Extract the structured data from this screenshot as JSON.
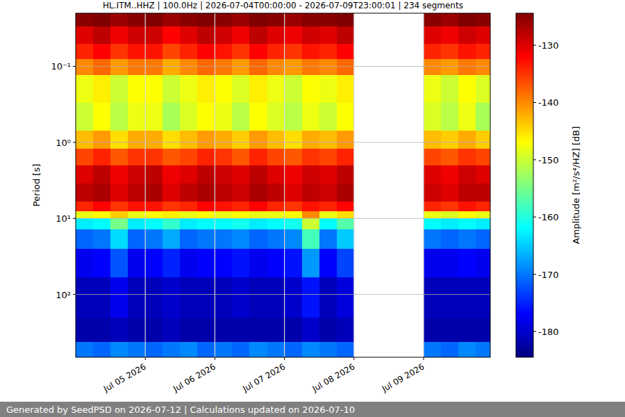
{
  "chart_data": {
    "type": "heatmap",
    "title": "HL.ITM..HHZ | 100.0Hz | 2026-07-04T00:00:00 - 2026-07-09T23:00:01 | 234 segments",
    "y_label": "Period [s]",
    "x_edges": [
      "2026-07-04T00:00",
      "2026-07-04T06:00",
      "2026-07-04T12:00",
      "2026-07-04T18:00",
      "2026-07-05T00:00",
      "2026-07-05T06:00",
      "2026-07-05T12:00",
      "2026-07-05T18:00",
      "2026-07-06T00:00",
      "2026-07-06T06:00",
      "2026-07-06T12:00",
      "2026-07-06T18:00",
      "2026-07-07T00:00",
      "2026-07-07T06:00",
      "2026-07-07T12:00",
      "2026-07-07T18:00",
      "2026-07-08T00:00",
      "2026-07-08T06:00",
      "2026-07-08T12:00",
      "2026-07-08T18:00",
      "2026-07-09T00:00",
      "2026-07-09T06:00",
      "2026-07-09T12:00",
      "2026-07-09T18:00",
      "2026-07-09T23:00"
    ],
    "y_edges": [
      0.02,
      0.03,
      0.05,
      0.08,
      0.13,
      0.3,
      0.7,
      1.2,
      2,
      3.5,
      6,
      8,
      10,
      14,
      25,
      60,
      200,
      420,
      670
    ],
    "z": [
      [
        -125,
        -124,
        -126,
        -125,
        -124,
        -126,
        -125,
        -124,
        -125,
        -126,
        -124,
        -125,
        -126,
        -125,
        -125,
        -124,
        null,
        null,
        null,
        null,
        -125,
        -126,
        -124,
        -125
      ],
      [
        -130,
        -128,
        -131,
        -129,
        -129,
        -132,
        -130,
        -128,
        -129,
        -131,
        -128,
        -130,
        -131,
        -129,
        -130,
        -128,
        null,
        null,
        null,
        null,
        -130,
        -131,
        -129,
        -130
      ],
      [
        -134,
        -132,
        -135,
        -133,
        -133,
        -136,
        -134,
        -132,
        -133,
        -135,
        -132,
        -134,
        -135,
        -133,
        -134,
        -132,
        null,
        null,
        null,
        null,
        -134,
        -135,
        -133,
        -134
      ],
      [
        -140,
        -138,
        -141,
        -139,
        -139,
        -142,
        -140,
        -138,
        -139,
        -141,
        -138,
        -140,
        -141,
        -139,
        -140,
        -138,
        null,
        null,
        null,
        null,
        -140,
        -141,
        -139,
        -140
      ],
      [
        -148,
        -146,
        -150,
        -147,
        -147,
        -150,
        -148,
        -146,
        -147,
        -149,
        -146,
        -148,
        -150,
        -147,
        -148,
        -146,
        null,
        null,
        null,
        null,
        -148,
        -150,
        -147,
        -149
      ],
      [
        -150,
        -147,
        -151,
        -148,
        -148,
        -152,
        -149,
        -147,
        -148,
        -151,
        -147,
        -149,
        -151,
        -148,
        -150,
        -147,
        null,
        null,
        null,
        null,
        -149,
        -151,
        -148,
        -152
      ],
      [
        -143,
        -141,
        -145,
        -142,
        -142,
        -145,
        -143,
        -141,
        -142,
        -144,
        -141,
        -143,
        -145,
        -142,
        -143,
        -141,
        null,
        null,
        null,
        null,
        -143,
        -144,
        -142,
        -144
      ],
      [
        -136,
        -134,
        -137,
        -135,
        -135,
        -137,
        -136,
        -134,
        -135,
        -137,
        -134,
        -136,
        -137,
        -135,
        -136,
        -134,
        null,
        null,
        null,
        null,
        -136,
        -137,
        -135,
        -136
      ],
      [
        -130,
        -128,
        -131,
        -129,
        -128,
        -131,
        -130,
        -128,
        -129,
        -130,
        -128,
        -130,
        -131,
        -129,
        -130,
        -128,
        null,
        null,
        null,
        null,
        -130,
        -131,
        -129,
        -130
      ],
      [
        -128,
        -127,
        -130,
        -128,
        -127,
        -130,
        -128,
        -127,
        -128,
        -129,
        -127,
        -128,
        -130,
        -128,
        -129,
        -127,
        null,
        null,
        null,
        null,
        -129,
        -130,
        -128,
        -128
      ],
      [
        -134,
        -132,
        -135,
        -133,
        -133,
        -135,
        -134,
        -132,
        -133,
        -134,
        -132,
        -134,
        -135,
        -133,
        -134,
        -132,
        null,
        null,
        null,
        null,
        -134,
        -135,
        -133,
        -134
      ],
      [
        -148,
        -147,
        -144,
        -148,
        -147,
        -146,
        -148,
        -147,
        -148,
        -147,
        -148,
        -148,
        -147,
        -140,
        -148,
        -145,
        null,
        null,
        null,
        null,
        -148,
        -149,
        -147,
        -148
      ],
      [
        -163,
        -162,
        -155,
        -163,
        -162,
        -159,
        -163,
        -162,
        -162,
        -161,
        -163,
        -162,
        -161,
        -150,
        -162,
        -157,
        null,
        null,
        null,
        null,
        -162,
        -163,
        -162,
        -163
      ],
      [
        -171,
        -170,
        -164,
        -171,
        -170,
        -167,
        -171,
        -170,
        -170,
        -169,
        -171,
        -170,
        -169,
        -158,
        -170,
        -165,
        null,
        null,
        null,
        null,
        -170,
        -171,
        -170,
        -171
      ],
      [
        -178,
        -177,
        -172,
        -178,
        -177,
        -175,
        -178,
        -177,
        -177,
        -176,
        -178,
        -177,
        -176,
        -168,
        -177,
        -173,
        null,
        null,
        null,
        null,
        -178,
        -178,
        -177,
        -178
      ],
      [
        -181,
        -181,
        -178,
        -181,
        -181,
        -180,
        -181,
        -181,
        -181,
        -180,
        -181,
        -181,
        -180,
        -176,
        -181,
        -179,
        null,
        null,
        null,
        null,
        -181,
        -181,
        -181,
        -181
      ],
      [
        -182,
        -182,
        -181,
        -182,
        -182,
        -181,
        -182,
        -182,
        -182,
        -182,
        -182,
        -182,
        -182,
        -180,
        -182,
        -181,
        null,
        null,
        null,
        null,
        -182,
        -182,
        -182,
        -182
      ],
      [
        -170,
        -171,
        -169,
        -170,
        -171,
        -170,
        -169,
        -171,
        -170,
        -171,
        -169,
        -170,
        -171,
        -169,
        -170,
        -171,
        null,
        null,
        null,
        null,
        -170,
        -171,
        -169,
        -170
      ]
    ],
    "xlim": [
      "2026-07-04T00:00",
      "2026-07-09T23:00"
    ],
    "ylim": [
      0.02,
      670
    ],
    "xticks": [
      {
        "value": "2026-07-05T00:00",
        "label": "Jul 05 2026"
      },
      {
        "value": "2026-07-06T00:00",
        "label": "Jul 06 2026"
      },
      {
        "value": "2026-07-07T00:00",
        "label": "Jul 07 2026"
      },
      {
        "value": "2026-07-08T00:00",
        "label": "Jul 08 2026"
      },
      {
        "value": "2026-07-09T00:00",
        "label": "Jul 09 2026"
      }
    ],
    "yticks": [
      {
        "value": 0.1,
        "label": "10⁻¹"
      },
      {
        "value": 1,
        "label": "10⁰"
      },
      {
        "value": 10,
        "label": "10¹"
      },
      {
        "value": 100,
        "label": "10²"
      }
    ],
    "log": "y",
    "grid": true,
    "colorbar": {
      "label": "Amplitude [m²/s⁴/HZ] [dB]",
      "range": [
        -184.5,
        -124.4
      ],
      "ticks": [
        -180,
        -170,
        -160,
        -150,
        -140,
        -130
      ]
    },
    "footer": "Generated by SeedPSD on 2026-07-12 | Calculations updated on 2026-07-10"
  }
}
